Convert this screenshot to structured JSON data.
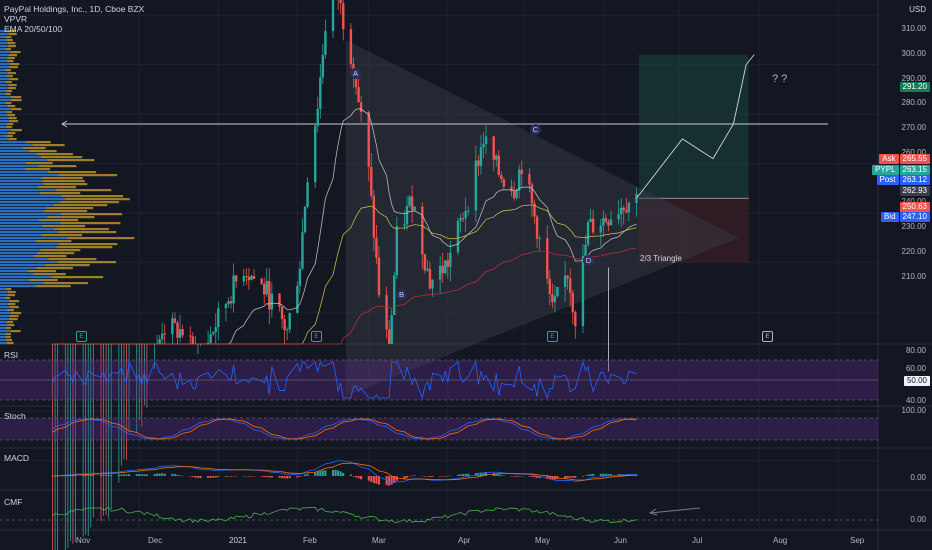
{
  "header": {
    "symbol_line": "PayPal Holdings, Inc., 1D, Cboe BZX",
    "indicator_1": "VPVR",
    "indicator_2": "EMA 20/50/100"
  },
  "axis": {
    "currency": "USD",
    "price_ticks": [
      "310.00",
      "300.00",
      "290.00",
      "280.00",
      "270.00",
      "260.00",
      "250.00",
      "240.00",
      "230.00",
      "220.00",
      "210.00"
    ],
    "rsi_ticks": [
      "80.00",
      "60.00",
      "40.00"
    ],
    "rsi_value_tag": "50.00",
    "stoch_ticks": [
      "100.00"
    ],
    "macd_ticks": [
      "0.00"
    ],
    "cmf_ticks": [
      "0.00"
    ],
    "x_ticks": [
      "Nov",
      "Dec",
      "2021",
      "Feb",
      "Mar",
      "Apr",
      "May",
      "Jun",
      "Jul",
      "Aug",
      "Sep"
    ]
  },
  "price_tags": [
    {
      "label": "Ask",
      "value": "265.55",
      "color": "#ef5350"
    },
    {
      "label": "PYPL",
      "value": "263.15",
      "color": "#26a69a"
    },
    {
      "label": "Post",
      "value": "263.12",
      "color": "#2962ff"
    },
    {
      "label": "",
      "value": "262.93",
      "color": "#3a3e4a"
    },
    {
      "label": "",
      "value": "250.63",
      "color": "#ef5350"
    },
    {
      "label": "Bid",
      "value": "247.10",
      "color": "#2962ff"
    },
    {
      "label": "",
      "value": "291.20",
      "color": "#1b7a5a"
    }
  ],
  "panes": {
    "rsi": "RSI",
    "stoch": "Stoch",
    "macd": "MACD",
    "cmf": "CMF"
  },
  "annotations": {
    "points": [
      "A",
      "B",
      "C",
      "D"
    ],
    "triangle_note": "2/3 Triangle",
    "question": "? ?",
    "earnings_marker": "E"
  },
  "colors": {
    "up": "#26a69a",
    "down": "#ef5350",
    "ema20": "#c8c8c8",
    "ema50": "#d4c44a",
    "ema100": "#c0303a",
    "vp_blue": "#2f7fd8",
    "vp_gold": "#b8902a",
    "osc_band": "#5b2a8a"
  },
  "chart_data": {
    "type": "candlestick",
    "title": "PayPal Holdings, Inc., 1D, Cboe BZX",
    "x_range": [
      "2020-10-27",
      "2021-09-15"
    ],
    "ylim": [
      205,
      315
    ],
    "close_path": [
      {
        "date": "2020-10-28",
        "close": 185
      },
      {
        "date": "2020-11-10",
        "close": 192
      },
      {
        "date": "2020-11-20",
        "close": 200
      },
      {
        "date": "2020-11-27",
        "close": 212
      },
      {
        "date": "2020-12-04",
        "close": 221
      },
      {
        "date": "2020-12-10",
        "close": 237
      },
      {
        "date": "2020-12-18",
        "close": 236
      },
      {
        "date": "2020-12-24",
        "close": 230
      },
      {
        "date": "2021-01-05",
        "close": 243
      },
      {
        "date": "2021-01-11",
        "close": 249
      },
      {
        "date": "2021-01-20",
        "close": 244
      },
      {
        "date": "2021-01-28",
        "close": 236
      },
      {
        "date": "2021-02-02",
        "close": 250
      },
      {
        "date": "2021-02-05",
        "close": 268
      },
      {
        "date": "2021-02-09",
        "close": 282
      },
      {
        "date": "2021-02-12",
        "close": 298
      },
      {
        "date": "2021-02-16",
        "close": 306
      },
      {
        "date": "2021-02-23",
        "close": 290
      },
      {
        "date": "2021-03-01",
        "close": 268
      },
      {
        "date": "2021-03-05",
        "close": 244
      },
      {
        "date": "2021-03-09",
        "close": 232
      },
      {
        "date": "2021-03-12",
        "close": 255
      },
      {
        "date": "2021-03-18",
        "close": 263
      },
      {
        "date": "2021-03-25",
        "close": 246
      },
      {
        "date": "2021-04-01",
        "close": 250
      },
      {
        "date": "2021-04-09",
        "close": 263
      },
      {
        "date": "2021-04-15",
        "close": 275
      },
      {
        "date": "2021-04-21",
        "close": 268
      },
      {
        "date": "2021-04-27",
        "close": 265
      },
      {
        "date": "2021-04-30",
        "close": 270
      },
      {
        "date": "2021-05-06",
        "close": 257
      },
      {
        "date": "2021-05-12",
        "close": 240
      },
      {
        "date": "2021-05-18",
        "close": 248
      },
      {
        "date": "2021-05-21",
        "close": 239
      },
      {
        "date": "2021-05-26",
        "close": 257
      },
      {
        "date": "2021-06-02",
        "close": 259
      },
      {
        "date": "2021-06-09",
        "close": 262
      },
      {
        "date": "2021-06-14",
        "close": 263.15
      }
    ],
    "projection": [
      {
        "date": "2021-06-14",
        "price": 263
      },
      {
        "date": "2021-07-02",
        "price": 275
      },
      {
        "date": "2021-07-14",
        "price": 271
      },
      {
        "date": "2021-07-22",
        "price": 278
      },
      {
        "date": "2021-07-27",
        "price": 290
      }
    ],
    "horizontal_level": 278,
    "triangle": {
      "upper": [
        {
          "date": "2021-02-20",
          "price": 295
        },
        {
          "date": "2021-07-24",
          "price": 255
        }
      ],
      "lower": [
        {
          "date": "2021-02-20",
          "price": 223
        },
        {
          "date": "2021-07-24",
          "price": 255
        }
      ]
    },
    "points": [
      {
        "label": "A",
        "date": "2021-02-16",
        "price": 306
      },
      {
        "label": "B",
        "date": "2021-03-09",
        "price": 224
      },
      {
        "label": "C",
        "date": "2021-04-27",
        "price": 278
      },
      {
        "label": "D",
        "date": "2021-05-21",
        "price": 233
      }
    ],
    "rsi_ticks": [
      40,
      50,
      60,
      80
    ],
    "series": [
      {
        "name": "EMA 20"
      },
      {
        "name": "EMA 50"
      },
      {
        "name": "EMA 100"
      }
    ]
  }
}
